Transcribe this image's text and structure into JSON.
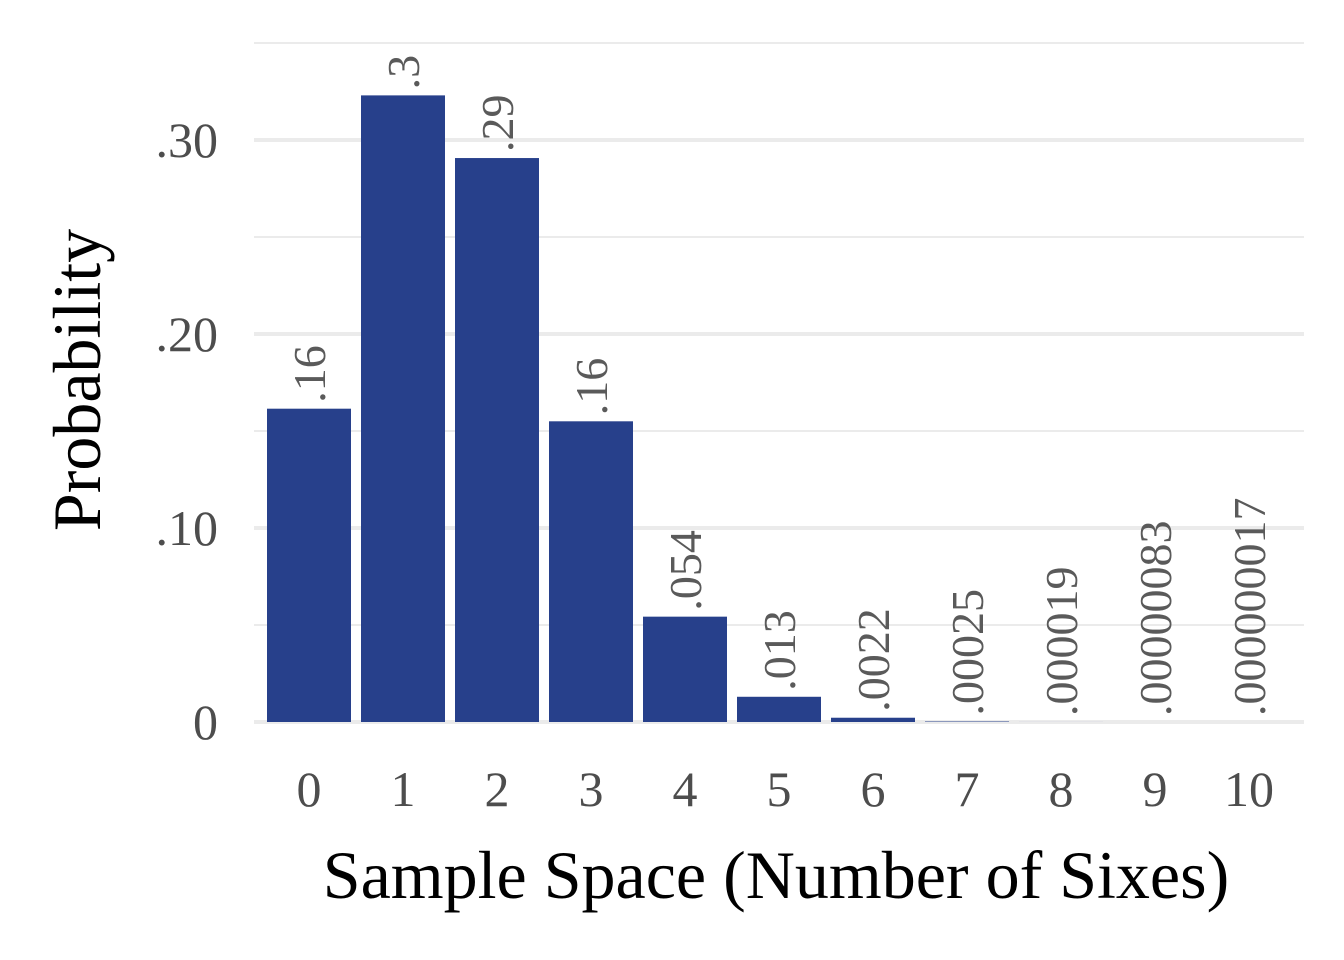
{
  "chart_data": {
    "type": "bar",
    "xlabel": "Sample Space (Number of Sixes)",
    "ylabel": "Probability",
    "categories": [
      "0",
      "1",
      "2",
      "3",
      "4",
      "5",
      "6",
      "7",
      "8",
      "9",
      "10"
    ],
    "values": [
      0.1615,
      0.323,
      0.2907,
      0.155,
      0.0543,
      0.013,
      0.0022,
      0.00025,
      1.9e-05,
      8.3e-07,
      1.7e-08
    ],
    "data_labels": [
      ".16",
      ".3",
      ".29",
      ".16",
      ".054",
      ".013",
      ".0022",
      ".00025",
      ".000019",
      ".00000083",
      ".000000017"
    ],
    "yticks": [
      0,
      0.1,
      0.2,
      0.3
    ],
    "ytick_labels": [
      "0",
      ".10",
      ".20",
      ".30"
    ],
    "ylim": [
      0,
      0.35
    ],
    "grid": true,
    "legend": false,
    "colors": {
      "bar": "#27408b",
      "grid": "#ebebeb",
      "data_label": "#5a5a5a",
      "tick_label": "#4d4d4d"
    }
  }
}
